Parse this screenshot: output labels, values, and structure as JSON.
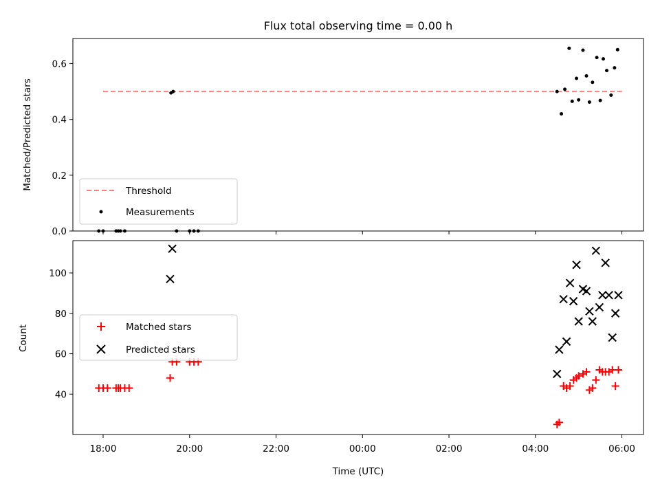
{
  "chart_data": [
    {
      "type": "scatter",
      "title": "Flux total observing time = 0.00 h",
      "ylabel": "Matched/Predicted stars",
      "xlabel": "",
      "x_unit": "hours since 18:00 (UTC)",
      "xlim": [
        -0.7,
        12.5
      ],
      "ylim": [
        0,
        0.69
      ],
      "yticks": [
        0.0,
        0.2,
        0.4,
        0.6
      ],
      "ytick_labels": [
        "0.0",
        "0.2",
        "0.4",
        "0.6"
      ],
      "xticks": [
        0,
        2,
        4,
        6,
        8,
        10,
        12
      ],
      "grid": false,
      "legend": "lower-left",
      "series": [
        {
          "name": "Threshold",
          "style": "dashed-line",
          "color": "#ff7f7f",
          "x": [
            0.0,
            12.0
          ],
          "y": [
            0.5,
            0.5
          ]
        },
        {
          "name": "Measurements",
          "style": "dot",
          "color": "#000000",
          "x": [
            -0.1,
            0.0,
            0.3,
            0.35,
            0.4,
            0.5,
            1.57,
            1.62,
            1.7,
            2.0,
            2.1,
            2.2,
            10.5,
            10.6,
            10.68,
            10.78,
            10.85,
            10.95,
            11.0,
            11.1,
            11.18,
            11.25,
            11.32,
            11.42,
            11.5,
            11.57,
            11.65,
            11.75,
            11.83,
            11.9
          ],
          "y": [
            0.0,
            0.0,
            0.0,
            0.0,
            0.0,
            0.0,
            0.495,
            0.5,
            0.0,
            0.0,
            0.0,
            0.0,
            0.5,
            0.42,
            0.508,
            0.655,
            0.465,
            0.547,
            0.47,
            0.648,
            0.556,
            0.462,
            0.533,
            0.622,
            0.468,
            0.617,
            0.575,
            0.487,
            0.585,
            0.65
          ]
        }
      ]
    },
    {
      "type": "scatter",
      "title": "",
      "ylabel": "Count",
      "xlabel": "Time (UTC)",
      "x_unit": "hours since 18:00 (UTC)",
      "xlim": [
        -0.7,
        12.5
      ],
      "ylim": [
        20,
        116
      ],
      "yticks": [
        40,
        60,
        80,
        100
      ],
      "ytick_labels": [
        "40",
        "60",
        "80",
        "100"
      ],
      "xticks": [
        0,
        2,
        4,
        6,
        8,
        10,
        12
      ],
      "xtick_labels": [
        "18:00",
        "20:00",
        "22:00",
        "00:00",
        "02:00",
        "04:00",
        "06:00"
      ],
      "grid": false,
      "legend": "center-left",
      "series": [
        {
          "name": "Matched stars",
          "marker": "plus",
          "color": "#ff0000",
          "x": [
            -0.1,
            0.0,
            0.1,
            0.3,
            0.35,
            0.4,
            0.5,
            0.6,
            1.55,
            1.6,
            1.7,
            2.0,
            2.1,
            2.2,
            10.5,
            10.55,
            10.65,
            10.72,
            10.8,
            10.88,
            10.95,
            11.0,
            11.1,
            11.18,
            11.25,
            11.32,
            11.4,
            11.48,
            11.55,
            11.62,
            11.7,
            11.78,
            11.85,
            11.92
          ],
          "y": [
            43,
            43,
            43,
            43,
            43,
            43,
            43,
            43,
            48,
            56,
            56,
            56,
            56,
            56,
            25,
            26,
            44,
            43,
            44,
            47,
            48,
            49,
            50,
            51,
            42,
            43,
            47,
            52,
            51,
            51,
            51,
            52,
            44,
            52
          ]
        },
        {
          "name": "Predicted stars",
          "marker": "x",
          "color": "#000000",
          "x": [
            1.55,
            1.6,
            10.5,
            10.55,
            10.65,
            10.72,
            10.8,
            10.88,
            10.95,
            11.0,
            11.1,
            11.18,
            11.25,
            11.32,
            11.4,
            11.48,
            11.55,
            11.62,
            11.7,
            11.78,
            11.85,
            11.92
          ],
          "y": [
            97,
            112,
            50,
            62,
            87,
            66,
            95,
            86,
            104,
            76,
            92,
            91,
            81,
            76,
            111,
            83,
            89,
            105,
            89,
            68,
            80,
            89
          ]
        }
      ]
    }
  ]
}
